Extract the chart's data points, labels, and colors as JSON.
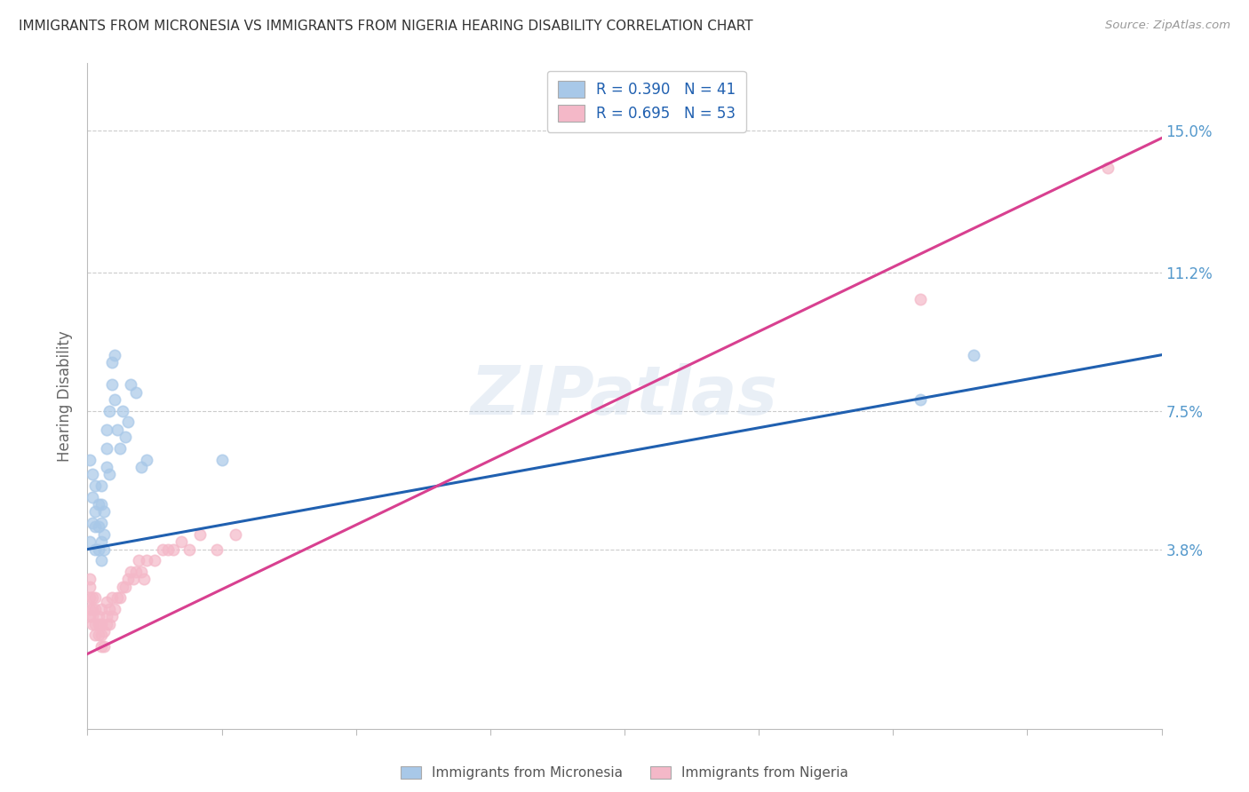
{
  "title": "IMMIGRANTS FROM MICRONESIA VS IMMIGRANTS FROM NIGERIA HEARING DISABILITY CORRELATION CHART",
  "source": "Source: ZipAtlas.com",
  "ylabel": "Hearing Disability",
  "yticks": [
    "3.8%",
    "7.5%",
    "11.2%",
    "15.0%"
  ],
  "ytick_vals": [
    0.038,
    0.075,
    0.112,
    0.15
  ],
  "xlim": [
    0.0,
    0.4
  ],
  "ylim": [
    -0.01,
    0.168
  ],
  "color_micronesia": "#a8c8e8",
  "color_nigeria": "#f4b8c8",
  "line_color_micronesia": "#2060b0",
  "line_color_nigeria": "#d84090",
  "watermark": "ZIPatlas",
  "mic_R": 0.39,
  "mic_N": 41,
  "nig_R": 0.695,
  "nig_N": 53,
  "micronesia_x": [
    0.001,
    0.001,
    0.002,
    0.002,
    0.002,
    0.003,
    0.003,
    0.003,
    0.003,
    0.004,
    0.004,
    0.004,
    0.005,
    0.005,
    0.005,
    0.005,
    0.005,
    0.006,
    0.006,
    0.006,
    0.007,
    0.007,
    0.007,
    0.008,
    0.008,
    0.009,
    0.009,
    0.01,
    0.01,
    0.011,
    0.012,
    0.013,
    0.014,
    0.015,
    0.016,
    0.018,
    0.02,
    0.022,
    0.05,
    0.31,
    0.33
  ],
  "micronesia_y": [
    0.04,
    0.062,
    0.045,
    0.052,
    0.058,
    0.038,
    0.044,
    0.048,
    0.055,
    0.038,
    0.044,
    0.05,
    0.035,
    0.04,
    0.045,
    0.05,
    0.055,
    0.038,
    0.042,
    0.048,
    0.06,
    0.065,
    0.07,
    0.058,
    0.075,
    0.082,
    0.088,
    0.078,
    0.09,
    0.07,
    0.065,
    0.075,
    0.068,
    0.072,
    0.082,
    0.08,
    0.06,
    0.062,
    0.062,
    0.078,
    0.09
  ],
  "nigeria_x": [
    0.001,
    0.001,
    0.001,
    0.001,
    0.001,
    0.002,
    0.002,
    0.002,
    0.002,
    0.003,
    0.003,
    0.003,
    0.003,
    0.004,
    0.004,
    0.004,
    0.005,
    0.005,
    0.005,
    0.005,
    0.006,
    0.006,
    0.007,
    0.007,
    0.007,
    0.008,
    0.008,
    0.009,
    0.009,
    0.01,
    0.011,
    0.012,
    0.013,
    0.014,
    0.015,
    0.016,
    0.017,
    0.018,
    0.019,
    0.02,
    0.021,
    0.022,
    0.025,
    0.028,
    0.03,
    0.032,
    0.035,
    0.038,
    0.042,
    0.048,
    0.055,
    0.31,
    0.38
  ],
  "nigeria_y": [
    0.02,
    0.022,
    0.025,
    0.028,
    0.03,
    0.018,
    0.02,
    0.022,
    0.025,
    0.015,
    0.018,
    0.022,
    0.025,
    0.015,
    0.018,
    0.02,
    0.012,
    0.015,
    0.018,
    0.022,
    0.012,
    0.016,
    0.018,
    0.02,
    0.024,
    0.018,
    0.022,
    0.02,
    0.025,
    0.022,
    0.025,
    0.025,
    0.028,
    0.028,
    0.03,
    0.032,
    0.03,
    0.032,
    0.035,
    0.032,
    0.03,
    0.035,
    0.035,
    0.038,
    0.038,
    0.038,
    0.04,
    0.038,
    0.042,
    0.038,
    0.042,
    0.105,
    0.14
  ],
  "mic_line_x0": 0.0,
  "mic_line_y0": 0.038,
  "mic_line_x1": 0.4,
  "mic_line_y1": 0.09,
  "nig_line_x0": 0.0,
  "nig_line_y0": 0.01,
  "nig_line_x1": 0.4,
  "nig_line_y1": 0.148
}
